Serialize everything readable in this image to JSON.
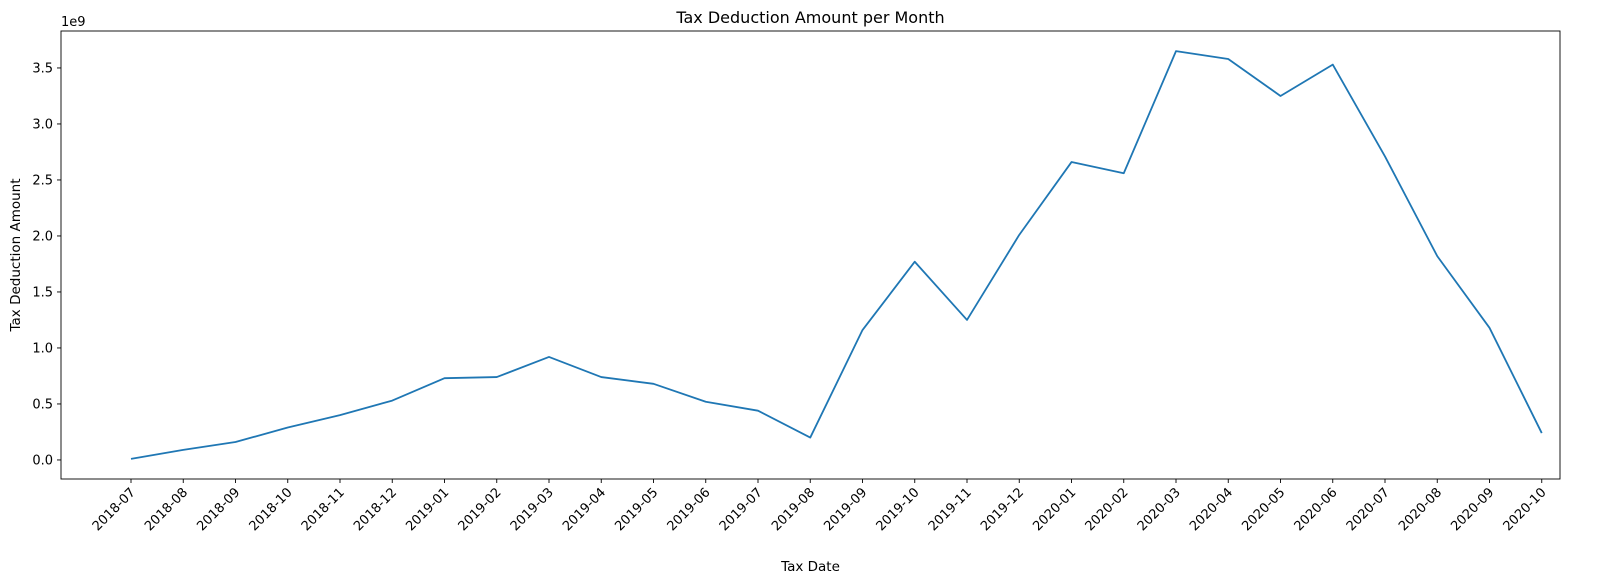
{
  "chart_data": {
    "type": "line",
    "title": "Tax Deduction Amount per Month",
    "xlabel": "Tax Date",
    "ylabel": "Tax Deduction Amount",
    "offset_label": "1e9",
    "categories": [
      "2018-07",
      "2018-08",
      "2018-09",
      "2018-10",
      "2018-11",
      "2018-12",
      "2019-01",
      "2019-02",
      "2019-03",
      "2019-04",
      "2019-05",
      "2019-06",
      "2019-07",
      "2019-08",
      "2019-09",
      "2019-10",
      "2019-11",
      "2019-12",
      "2020-01",
      "2020-02",
      "2020-03",
      "2020-04",
      "2020-05",
      "2020-06",
      "2020-07",
      "2020-08",
      "2020-09",
      "2020-10"
    ],
    "values": [
      10000000,
      90000000,
      160000000,
      290000000,
      400000000,
      530000000,
      730000000,
      740000000,
      920000000,
      740000000,
      680000000,
      520000000,
      440000000,
      200000000,
      1160000000,
      1770000000,
      1250000000,
      2010000000,
      2660000000,
      2560000000,
      3650000000,
      3580000000,
      3250000000,
      3530000000,
      2710000000,
      1820000000,
      1180000000,
      240000000
    ],
    "yticks": [
      0,
      500000000,
      1000000000,
      1500000000,
      2000000000,
      2500000000,
      3000000000,
      3500000000
    ],
    "ytick_labels": [
      "0.0",
      "0.5",
      "1.0",
      "1.5",
      "2.0",
      "2.5",
      "3.0",
      "3.5"
    ],
    "ylim": [
      -170000000,
      3830000000
    ],
    "grid": false,
    "line_color": "#1f77b4"
  }
}
